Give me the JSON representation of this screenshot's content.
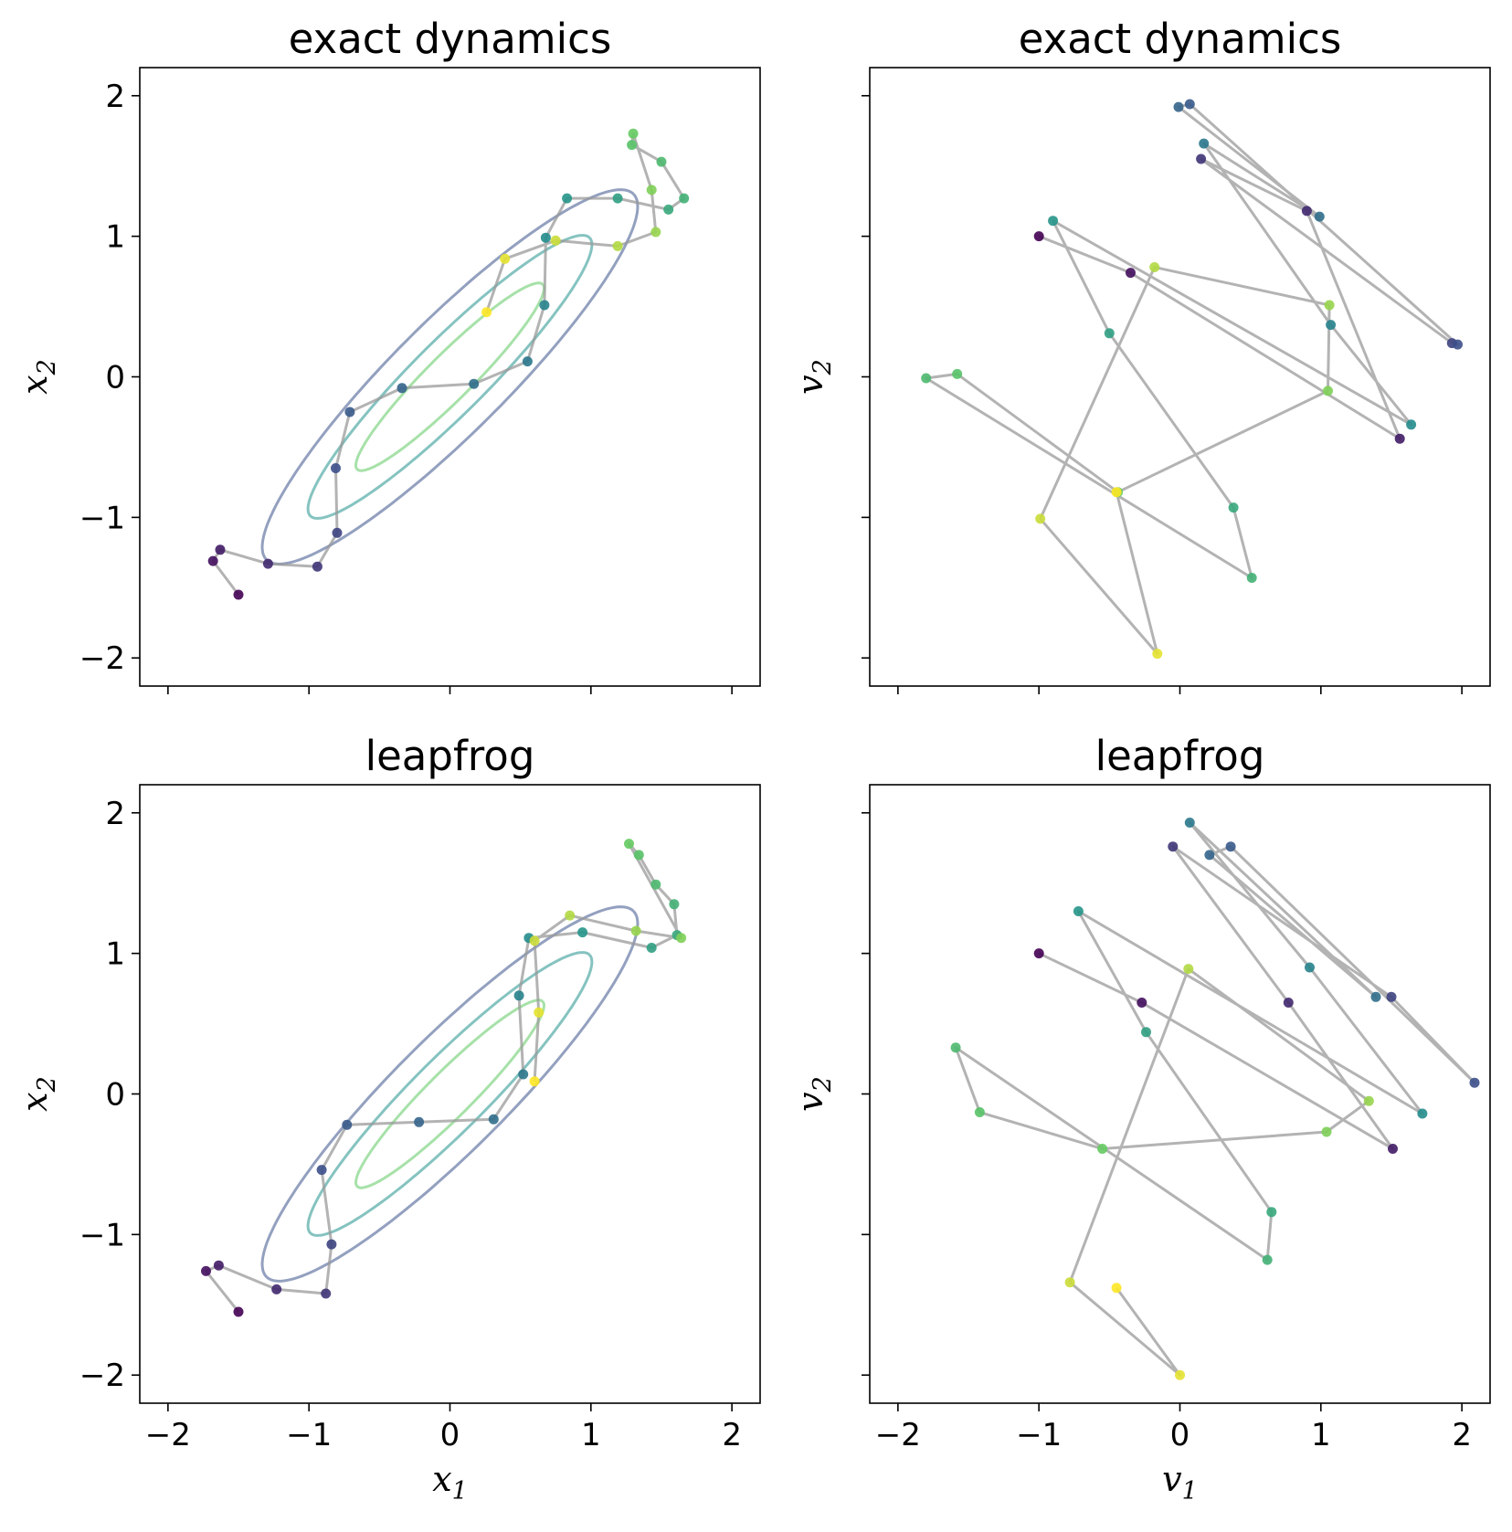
{
  "figure": {
    "colormap": [
      "#440154",
      "#3b528b",
      "#21918c",
      "#5ec962",
      "#fde725"
    ],
    "trajectory_color": "#999999"
  },
  "chart_data": [
    {
      "type": "scatter",
      "title": "exact dynamics",
      "xlabel": "",
      "ylabel": "x2",
      "xlim": [
        -2.2,
        2.2
      ],
      "ylim": [
        -2.2,
        2.2
      ],
      "xticks": [
        -2,
        -1,
        0,
        1,
        2
      ],
      "yticks": [
        -2,
        -1,
        0,
        1,
        2
      ],
      "show_xtick_labels": false,
      "show_ytick_labels": true,
      "contours": [
        {
          "sx": 1.84,
          "sy": 0.4,
          "color": "#3b528b"
        },
        {
          "sx": 1.4,
          "sy": 0.26,
          "color": "#21918c"
        },
        {
          "sx": 0.93,
          "sy": 0.16,
          "color": "#5ec962"
        }
      ],
      "x": [
        -1.5,
        -1.68,
        -1.63,
        -1.29,
        -0.94,
        -0.8,
        -0.81,
        -0.71,
        -0.34,
        0.17,
        0.55,
        0.67,
        0.68,
        0.83,
        1.19,
        1.55,
        1.66,
        1.5,
        1.29,
        1.3,
        1.43,
        1.46,
        1.19,
        0.75,
        0.39,
        0.26
      ],
      "y": [
        -1.55,
        -1.31,
        -1.23,
        -1.33,
        -1.35,
        -1.11,
        -0.65,
        -0.25,
        -0.08,
        -0.05,
        0.11,
        0.51,
        0.99,
        1.27,
        1.27,
        1.19,
        1.27,
        1.53,
        1.65,
        1.73,
        1.33,
        1.03,
        0.93,
        0.97,
        0.84,
        0.46
      ]
    },
    {
      "type": "scatter",
      "title": "exact dynamics",
      "xlabel": "",
      "ylabel": "v2",
      "xlim": [
        -2.2,
        2.2
      ],
      "ylim": [
        -2.2,
        2.2
      ],
      "xticks": [
        -2,
        -1,
        0,
        1,
        2
      ],
      "yticks": [
        -2,
        -1,
        0,
        1,
        2
      ],
      "show_xtick_labels": false,
      "show_ytick_labels": false,
      "x": [
        -1.0,
        -0.35,
        1.56,
        0.9,
        0.15,
        1.93,
        1.97,
        0.07,
        -0.01,
        0.99,
        0.17,
        1.07,
        1.64,
        -0.9,
        -0.5,
        0.38,
        0.51,
        -1.8,
        -1.58,
        -0.44,
        1.05,
        1.06,
        -0.18,
        -0.99,
        -0.16,
        -0.45
      ],
      "y": [
        1.0,
        0.74,
        -0.44,
        1.18,
        1.55,
        0.24,
        0.23,
        1.94,
        1.92,
        1.14,
        1.66,
        0.37,
        -0.34,
        1.11,
        0.31,
        -0.93,
        -1.43,
        -0.01,
        0.02,
        -0.82,
        -0.1,
        0.51,
        0.78,
        -1.01,
        -1.97,
        -0.82
      ]
    },
    {
      "type": "scatter",
      "title": "leapfrog",
      "xlabel": "x1",
      "ylabel": "x2",
      "xlim": [
        -2.2,
        2.2
      ],
      "ylim": [
        -2.2,
        2.2
      ],
      "xticks": [
        -2,
        -1,
        0,
        1,
        2
      ],
      "yticks": [
        -2,
        -1,
        0,
        1,
        2
      ],
      "show_xtick_labels": true,
      "show_ytick_labels": true,
      "contours": [
        {
          "sx": 1.84,
          "sy": 0.4,
          "color": "#3b528b"
        },
        {
          "sx": 1.4,
          "sy": 0.26,
          "color": "#21918c"
        },
        {
          "sx": 0.93,
          "sy": 0.16,
          "color": "#5ec962"
        }
      ],
      "x": [
        -1.5,
        -1.73,
        -1.64,
        -1.23,
        -0.88,
        -0.84,
        -0.91,
        -0.73,
        -0.22,
        0.31,
        0.52,
        0.49,
        0.56,
        0.94,
        1.43,
        1.61,
        1.59,
        1.46,
        1.34,
        1.27,
        1.64,
        1.32,
        0.85,
        0.6,
        0.63,
        0.6
      ],
      "y": [
        -1.55,
        -1.26,
        -1.22,
        -1.39,
        -1.42,
        -1.07,
        -0.54,
        -0.22,
        -0.2,
        -0.18,
        0.14,
        0.7,
        1.11,
        1.15,
        1.04,
        1.13,
        1.35,
        1.49,
        1.7,
        1.78,
        1.11,
        1.16,
        1.27,
        1.09,
        0.58,
        0.09
      ]
    },
    {
      "type": "scatter",
      "title": "leapfrog",
      "xlabel": "v1",
      "ylabel": "v2",
      "xlim": [
        -2.2,
        2.2
      ],
      "ylim": [
        -2.2,
        2.2
      ],
      "xticks": [
        -2,
        -1,
        0,
        1,
        2
      ],
      "yticks": [
        -2,
        -1,
        0,
        1,
        2
      ],
      "show_xtick_labels": true,
      "show_ytick_labels": false,
      "x": [
        -1.0,
        -0.27,
        1.51,
        0.77,
        -0.05,
        1.5,
        2.09,
        0.36,
        0.21,
        1.39,
        0.07,
        0.92,
        1.72,
        -0.72,
        -0.24,
        0.65,
        0.62,
        -1.59,
        -1.42,
        -0.55,
        1.04,
        1.34,
        0.06,
        -0.78,
        0.0,
        -0.45
      ],
      "y": [
        1.0,
        0.65,
        -0.39,
        0.65,
        1.76,
        0.69,
        0.08,
        1.76,
        1.7,
        0.69,
        1.93,
        0.9,
        -0.14,
        1.3,
        0.44,
        -0.84,
        -1.18,
        0.33,
        -0.13,
        -0.39,
        -0.27,
        -0.05,
        0.89,
        -1.34,
        -2.0,
        -1.38
      ]
    }
  ]
}
